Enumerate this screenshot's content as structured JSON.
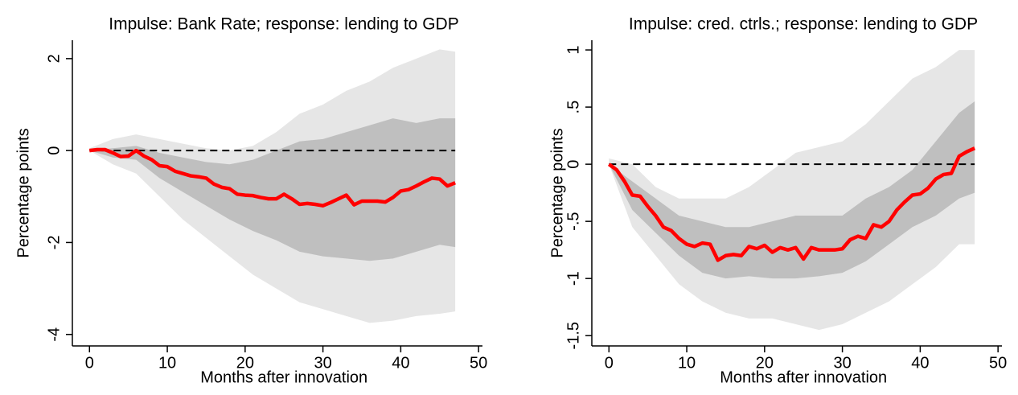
{
  "chart_data": [
    {
      "type": "line",
      "title": "Impulse: Bank Rate; response: lending to GDP",
      "x_label": "Months after innovation",
      "y_label": "Percentage points",
      "xlim": [
        -2.2,
        50.5
      ],
      "ylim": [
        -4.25,
        2.4
      ],
      "xticks": [
        0,
        10,
        20,
        30,
        40,
        50
      ],
      "yticks": [
        -4,
        -2,
        0,
        2
      ],
      "hline": 0,
      "x": [
        0,
        1,
        2,
        3,
        4,
        5,
        6,
        7,
        8,
        9,
        10,
        11,
        12,
        13,
        14,
        15,
        16,
        17,
        18,
        19,
        20,
        21,
        22,
        23,
        24,
        25,
        26,
        27,
        28,
        29,
        30,
        31,
        32,
        33,
        34,
        35,
        36,
        37,
        38,
        39,
        40,
        41,
        42,
        43,
        44,
        45,
        46,
        47
      ],
      "series": [
        {
          "color": "#ff0000",
          "values": [
            0,
            0.02,
            0.02,
            -0.05,
            -0.13,
            -0.12,
            0.0,
            -0.12,
            -0.2,
            -0.33,
            -0.35,
            -0.45,
            -0.5,
            -0.55,
            -0.57,
            -0.6,
            -0.73,
            -0.8,
            -0.83,
            -0.95,
            -0.97,
            -0.98,
            -1.02,
            -1.05,
            -1.05,
            -0.95,
            -1.05,
            -1.17,
            -1.15,
            -1.17,
            -1.2,
            -1.13,
            -1.05,
            -0.97,
            -1.18,
            -1.1,
            -1.1,
            -1.1,
            -1.12,
            -1.02,
            -0.88,
            -0.85,
            -0.77,
            -0.68,
            -0.6,
            -0.62,
            -0.77,
            -0.7
          ]
        }
      ],
      "bands": [
        {
          "color": "#e6e6e6",
          "x": [
            0,
            3,
            6,
            9,
            12,
            15,
            18,
            21,
            24,
            27,
            30,
            33,
            36,
            39,
            42,
            45,
            47
          ],
          "lower": [
            0,
            -0.3,
            -0.5,
            -1.0,
            -1.5,
            -1.9,
            -2.3,
            -2.7,
            -3.0,
            -3.3,
            -3.45,
            -3.6,
            -3.75,
            -3.7,
            -3.6,
            -3.55,
            -3.5
          ],
          "upper": [
            0.05,
            0.25,
            0.35,
            0.25,
            0.15,
            0.05,
            0.0,
            0.1,
            0.4,
            0.8,
            1.0,
            1.3,
            1.5,
            1.8,
            2.0,
            2.2,
            2.15
          ]
        },
        {
          "color": "#bfbfbf",
          "x": [
            0,
            3,
            6,
            9,
            12,
            15,
            18,
            21,
            24,
            27,
            30,
            33,
            36,
            39,
            42,
            45,
            47
          ],
          "lower": [
            0,
            -0.15,
            -0.2,
            -0.6,
            -0.9,
            -1.2,
            -1.5,
            -1.75,
            -1.95,
            -2.2,
            -2.3,
            -2.35,
            -2.4,
            -2.35,
            -2.2,
            -2.05,
            -2.1
          ],
          "upper": [
            0,
            0.05,
            0.1,
            -0.05,
            -0.15,
            -0.25,
            -0.3,
            -0.2,
            0.0,
            0.2,
            0.25,
            0.4,
            0.55,
            0.7,
            0.6,
            0.7,
            0.7
          ]
        }
      ]
    },
    {
      "type": "line",
      "title": "Impulse: cred. ctrls.; response: lending to GDP",
      "x_label": "Months after innovation",
      "y_label": "Percentage points",
      "xlim": [
        -2.2,
        50.5
      ],
      "ylim": [
        -1.59,
        1.085
      ],
      "xticks": [
        0,
        10,
        20,
        30,
        40,
        50
      ],
      "yticks": [
        {
          "value": -1.5,
          "label": "-1.5"
        },
        -1,
        {
          "value": -0.5,
          "label": "-.5"
        },
        0,
        {
          "value": 0.5,
          "label": ".5"
        },
        1
      ],
      "hline": 0,
      "x": [
        0,
        1,
        2,
        3,
        4,
        5,
        6,
        7,
        8,
        9,
        10,
        11,
        12,
        13,
        14,
        15,
        16,
        17,
        18,
        19,
        20,
        21,
        22,
        23,
        24,
        25,
        26,
        27,
        28,
        29,
        30,
        31,
        32,
        33,
        34,
        35,
        36,
        37,
        38,
        39,
        40,
        41,
        42,
        43,
        44,
        45,
        46,
        47
      ],
      "series": [
        {
          "color": "#ff0000",
          "values": [
            0,
            -0.05,
            -0.15,
            -0.27,
            -0.28,
            -0.37,
            -0.45,
            -0.55,
            -0.58,
            -0.65,
            -0.7,
            -0.72,
            -0.69,
            -0.7,
            -0.84,
            -0.8,
            -0.79,
            -0.8,
            -0.72,
            -0.74,
            -0.71,
            -0.77,
            -0.73,
            -0.75,
            -0.73,
            -0.83,
            -0.73,
            -0.75,
            -0.75,
            -0.75,
            -0.74,
            -0.66,
            -0.63,
            -0.65,
            -0.53,
            -0.55,
            -0.5,
            -0.4,
            -0.33,
            -0.27,
            -0.26,
            -0.21,
            -0.13,
            -0.09,
            -0.08,
            0.07,
            0.11,
            0.14
          ]
        }
      ],
      "bands": [
        {
          "color": "#e6e6e6",
          "x": [
            0,
            3,
            6,
            9,
            12,
            15,
            18,
            21,
            24,
            27,
            30,
            33,
            36,
            39,
            42,
            45,
            47
          ],
          "lower": [
            0,
            -0.55,
            -0.8,
            -1.05,
            -1.2,
            -1.3,
            -1.35,
            -1.35,
            -1.4,
            -1.45,
            -1.4,
            -1.3,
            -1.2,
            -1.05,
            -0.9,
            -0.7,
            -0.7
          ],
          "upper": [
            0.05,
            0.0,
            -0.2,
            -0.3,
            -0.3,
            -0.3,
            -0.2,
            -0.05,
            0.1,
            0.15,
            0.2,
            0.35,
            0.55,
            0.75,
            0.85,
            1.0,
            1.0
          ]
        },
        {
          "color": "#bfbfbf",
          "x": [
            0,
            3,
            6,
            9,
            12,
            15,
            18,
            21,
            24,
            27,
            30,
            33,
            36,
            39,
            42,
            45,
            47
          ],
          "lower": [
            0,
            -0.4,
            -0.6,
            -0.8,
            -0.95,
            -1.0,
            -0.98,
            -1.0,
            -1.0,
            -0.98,
            -0.95,
            -0.85,
            -0.7,
            -0.55,
            -0.45,
            -0.3,
            -0.25
          ],
          "upper": [
            0,
            -0.15,
            -0.3,
            -0.45,
            -0.5,
            -0.55,
            -0.55,
            -0.5,
            -0.45,
            -0.45,
            -0.45,
            -0.3,
            -0.2,
            -0.05,
            0.2,
            0.45,
            0.55
          ]
        }
      ]
    }
  ]
}
